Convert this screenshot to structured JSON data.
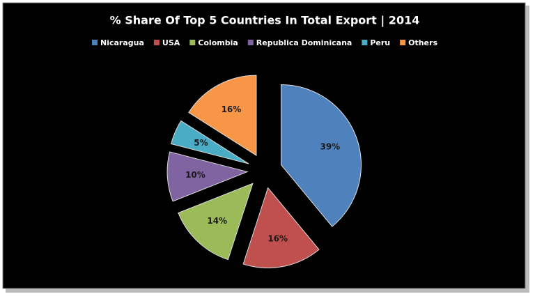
{
  "chart_data": {
    "type": "pie",
    "title": "% Share Of Top 5 Countries In Total Export | 2014",
    "categories": [
      "Nicaragua",
      "USA",
      "Colombia",
      "Republica Dominicana",
      "Peru",
      "Others"
    ],
    "values": [
      39,
      16,
      14,
      10,
      5,
      16
    ],
    "value_labels": [
      "39%",
      "16%",
      "14%",
      "10%",
      "5%",
      "16%"
    ],
    "colors": [
      "#4f81bd",
      "#c0504d",
      "#9bbb59",
      "#8064a2",
      "#4bacc6",
      "#f79646"
    ],
    "legend": "top"
  }
}
